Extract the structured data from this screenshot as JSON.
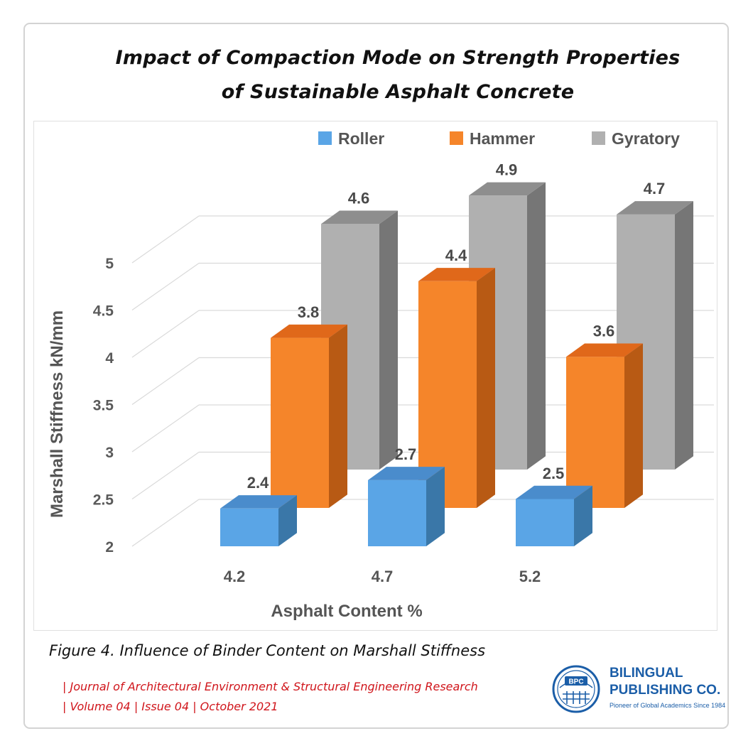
{
  "page": {
    "title_line1": "Impact of Compaction Mode on Strength Properties",
    "title_line2": "of Sustainable Asphalt Concrete",
    "caption": "Figure 4. Influence of Binder Content on Marshall Stiffness",
    "journal_line1": "| Journal of Architectural Environment & Structural Engineering Research",
    "journal_line2": "| Volume 04 | Issue 04 | October 2021"
  },
  "logo": {
    "badge": "BPC",
    "name_line1": "BILINGUAL",
    "name_line2": "PUBLISHING CO.",
    "tagline": "Pioneer of Global Academics Since 1984"
  },
  "chart_data": {
    "type": "bar",
    "subtype": "3d-clustered-column",
    "xlabel": "Asphalt Content %",
    "ylabel": "Marshall Stiffness  kN/mm",
    "categories": [
      "4.2",
      "4.7",
      "5.2"
    ],
    "yticks": [
      "2",
      "2.5",
      "3",
      "3.5",
      "4",
      "4.5",
      "5"
    ],
    "ylim": [
      2,
      5
    ],
    "grid": true,
    "legend_position": "top-right",
    "series": [
      {
        "name": "Roller",
        "values": [
          2.4,
          2.7,
          2.5
        ],
        "color": "#5aa5e6",
        "side_color": "#3a77a8",
        "top_color": "#4a8ccc"
      },
      {
        "name": "Hammer",
        "values": [
          3.8,
          4.4,
          3.6
        ],
        "color": "#f5852a",
        "side_color": "#b85a14",
        "top_color": "#e0681a"
      },
      {
        "name": "Gyratory",
        "values": [
          4.6,
          4.9,
          4.7
        ],
        "color": "#b0b0b0",
        "side_color": "#767676",
        "top_color": "#8e8e8e"
      }
    ],
    "data_labels": [
      [
        "2.4",
        "2.7",
        "2.5"
      ],
      [
        "3.8",
        "4.4",
        "3.6"
      ],
      [
        "4.6",
        "4.9",
        "4.7"
      ]
    ]
  }
}
